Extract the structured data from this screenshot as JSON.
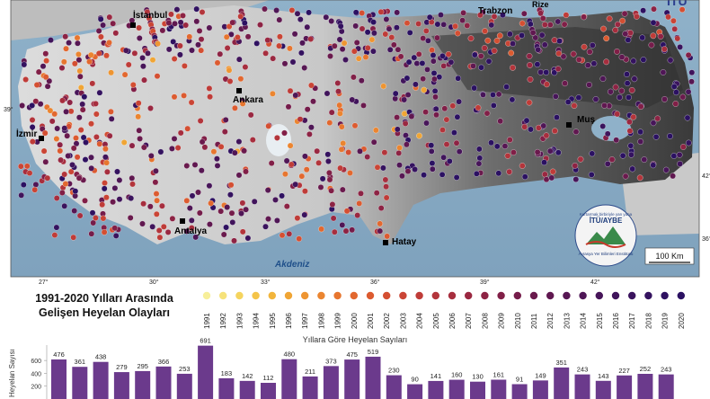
{
  "map": {
    "cities": [
      "İstanbul",
      "Trabzon",
      "Rize",
      "Ankara",
      "İzmir",
      "Muş",
      "Antalya",
      "Hatay"
    ],
    "sea_labels": [
      "Akdeniz"
    ],
    "lon_ticks": [
      "27°",
      "30°",
      "33°",
      "36°",
      "39°",
      "42°"
    ],
    "lat_ticks": [
      "42°",
      "39°",
      "36°"
    ],
    "scale_label": "100 Km",
    "logo_text": [
      "Kurtarmak birbiriyle yan yana",
      "İTÜ/AYBE",
      "Avrasya Yer Bilimleri Enstitüsü"
    ],
    "corner_text": "İTÜ"
  },
  "legend": {
    "title_line1": "1991-2020 Yılları Arasında",
    "title_line2": "Gelişen Heyelan Olayları",
    "years": [
      "1991",
      "1992",
      "1993",
      "1994",
      "1995",
      "1996",
      "1997",
      "1998",
      "1999",
      "2000",
      "2001",
      "2002",
      "2003",
      "2004",
      "2005",
      "2006",
      "2007",
      "2008",
      "2009",
      "2010",
      "2011",
      "2012",
      "2013",
      "2014",
      "2015",
      "2016",
      "2017",
      "2018",
      "2019",
      "2020"
    ],
    "colors": [
      "#f7ef9a",
      "#f6e27a",
      "#f5d45e",
      "#f4c449",
      "#f2b53c",
      "#f0a535",
      "#ee9532",
      "#eb8530",
      "#e7762f",
      "#e2682f",
      "#dc5b30",
      "#d44f32",
      "#ca4535",
      "#bf3c38",
      "#b3353b",
      "#a72e3e",
      "#9a2841",
      "#8d2344",
      "#811f47",
      "#751c4a",
      "#6a1a4d",
      "#601850",
      "#571753",
      "#4f1656",
      "#471559",
      "#40145b",
      "#3a135d",
      "#34125f",
      "#2f1161",
      "#2b1162"
    ]
  },
  "chart_data": {
    "type": "bar",
    "title": "Yıllara Göre Heyelan Sayıları",
    "ylabel": "Heyelan Sayısı",
    "yticks": [
      "600",
      "400",
      "200"
    ],
    "ylim": [
      0,
      700
    ],
    "categories": [
      "1991",
      "1992",
      "1993",
      "1994",
      "1995",
      "1996",
      "1997",
      "1998",
      "1999",
      "2000",
      "2001",
      "2002",
      "2003",
      "2004",
      "2005",
      "2006",
      "2007",
      "2008",
      "2009",
      "2010",
      "2011",
      "2012",
      "2013",
      "2014",
      "2015",
      "2016",
      "2017",
      "2018",
      "2019",
      "2020"
    ],
    "values": [
      476,
      361,
      438,
      279,
      295,
      366,
      253,
      691,
      183,
      142,
      112,
      480,
      211,
      373,
      475,
      519,
      230,
      90,
      141,
      160,
      130,
      161,
      91,
      149,
      351,
      243,
      143,
      227,
      252,
      243
    ],
    "bar_color": "#6b3a8c"
  }
}
